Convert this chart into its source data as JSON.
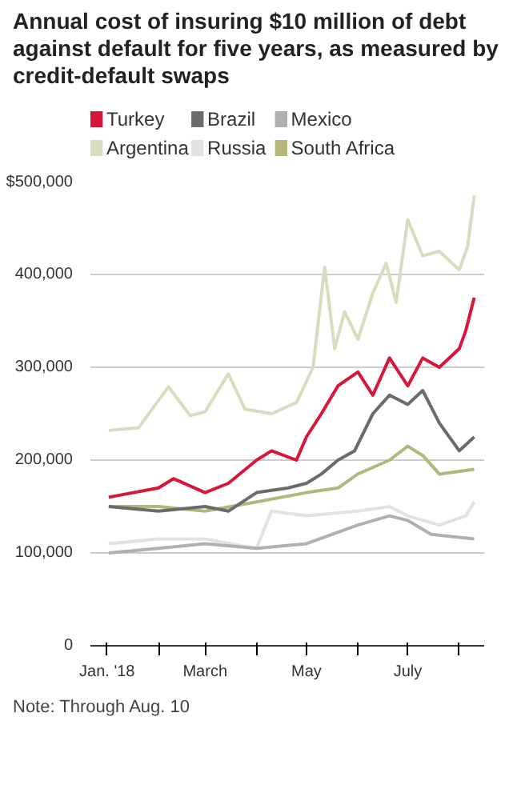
{
  "chart_data": {
    "type": "line",
    "title": "Annual cost of insuring $10 million of debt against default for five years, as measured by credit-default swaps",
    "annotations": [
      "Note: Through Aug. 10"
    ],
    "legend": "top",
    "grid": "y",
    "marker": "none",
    "line_style": "solid",
    "xlim": [
      "2017-12-22",
      "2018-08-16"
    ],
    "xticks": [
      {
        "value": "2018-01-01",
        "label": "Jan. '18"
      },
      {
        "value": "2018-02-01",
        "label": null
      },
      {
        "value": "2018-03-01",
        "label": "March"
      },
      {
        "value": "2018-04-01",
        "label": null
      },
      {
        "value": "2018-05-01",
        "label": "May"
      },
      {
        "value": "2018-06-01",
        "label": null
      },
      {
        "value": "2018-07-01",
        "label": "July"
      },
      {
        "value": "2018-08-01",
        "label": null
      }
    ],
    "ylim": [
      0,
      500000
    ],
    "yticks": [
      0,
      {
        "value": 100000,
        "label": "100,000"
      },
      {
        "value": 200000,
        "label": "200,000"
      },
      {
        "value": 300000,
        "label": "300,000"
      },
      {
        "value": 400000,
        "label": "400,000"
      },
      {
        "value": 500000,
        "label": "$500,000"
      }
    ],
    "series": [
      {
        "name": "Argentina",
        "color": "#d9dcbf",
        "x": [
          "2018-01-02",
          "2018-01-20",
          "2018-02-07",
          "2018-02-20",
          "2018-03-01",
          "2018-03-15",
          "2018-03-25",
          "2018-04-10",
          "2018-04-25",
          "2018-05-05",
          "2018-05-12",
          "2018-05-18",
          "2018-05-24",
          "2018-06-01",
          "2018-06-10",
          "2018-06-18",
          "2018-06-24",
          "2018-07-01",
          "2018-07-10",
          "2018-07-20",
          "2018-08-01",
          "2018-08-06",
          "2018-08-10"
        ],
        "values": [
          232000,
          235000,
          279000,
          248000,
          252000,
          293000,
          255000,
          250000,
          262000,
          300000,
          408000,
          320000,
          360000,
          330000,
          380000,
          412000,
          370000,
          459000,
          420000,
          425000,
          405000,
          430000,
          485000
        ]
      },
      {
        "name": "Russia",
        "color": "#e2e2e2",
        "x": [
          "2018-01-02",
          "2018-02-01",
          "2018-03-01",
          "2018-04-01",
          "2018-04-10",
          "2018-05-01",
          "2018-06-01",
          "2018-06-20",
          "2018-07-01",
          "2018-07-20",
          "2018-08-05",
          "2018-08-10"
        ],
        "values": [
          110000,
          115000,
          115000,
          105000,
          145000,
          140000,
          145000,
          150000,
          140000,
          130000,
          140000,
          155000
        ]
      },
      {
        "name": "Mexico",
        "color": "#b0b0b0",
        "x": [
          "2018-01-02",
          "2018-02-01",
          "2018-03-01",
          "2018-04-01",
          "2018-05-01",
          "2018-06-01",
          "2018-06-20",
          "2018-07-01",
          "2018-07-15",
          "2018-08-10"
        ],
        "values": [
          100000,
          105000,
          110000,
          105000,
          110000,
          130000,
          140000,
          135000,
          120000,
          115000
        ]
      },
      {
        "name": "South Africa",
        "color": "#b3b77c",
        "x": [
          "2018-01-02",
          "2018-02-01",
          "2018-03-01",
          "2018-04-01",
          "2018-05-01",
          "2018-05-20",
          "2018-06-01",
          "2018-06-20",
          "2018-07-01",
          "2018-07-10",
          "2018-07-20",
          "2018-08-10"
        ],
        "values": [
          150000,
          150000,
          145000,
          155000,
          165000,
          170000,
          185000,
          200000,
          215000,
          205000,
          185000,
          190000
        ]
      },
      {
        "name": "Brazil",
        "color": "#6b6b6b",
        "x": [
          "2018-01-02",
          "2018-02-01",
          "2018-03-01",
          "2018-03-15",
          "2018-04-01",
          "2018-04-20",
          "2018-05-01",
          "2018-05-10",
          "2018-05-20",
          "2018-05-30",
          "2018-06-10",
          "2018-06-20",
          "2018-07-01",
          "2018-07-10",
          "2018-07-20",
          "2018-08-01",
          "2018-08-10"
        ],
        "values": [
          150000,
          145000,
          150000,
          145000,
          165000,
          170000,
          175000,
          185000,
          200000,
          210000,
          250000,
          270000,
          260000,
          275000,
          240000,
          210000,
          225000
        ]
      },
      {
        "name": "Turkey",
        "color": "#d6173a",
        "x": [
          "2018-01-02",
          "2018-02-01",
          "2018-02-10",
          "2018-03-01",
          "2018-03-15",
          "2018-04-01",
          "2018-04-10",
          "2018-04-25",
          "2018-05-01",
          "2018-05-10",
          "2018-05-20",
          "2018-06-01",
          "2018-06-10",
          "2018-06-20",
          "2018-07-01",
          "2018-07-10",
          "2018-07-20",
          "2018-08-01",
          "2018-08-05",
          "2018-08-10"
        ],
        "values": [
          160000,
          170000,
          180000,
          165000,
          175000,
          200000,
          210000,
          200000,
          225000,
          250000,
          280000,
          295000,
          270000,
          310000,
          280000,
          310000,
          300000,
          320000,
          340000,
          375000
        ]
      }
    ]
  }
}
